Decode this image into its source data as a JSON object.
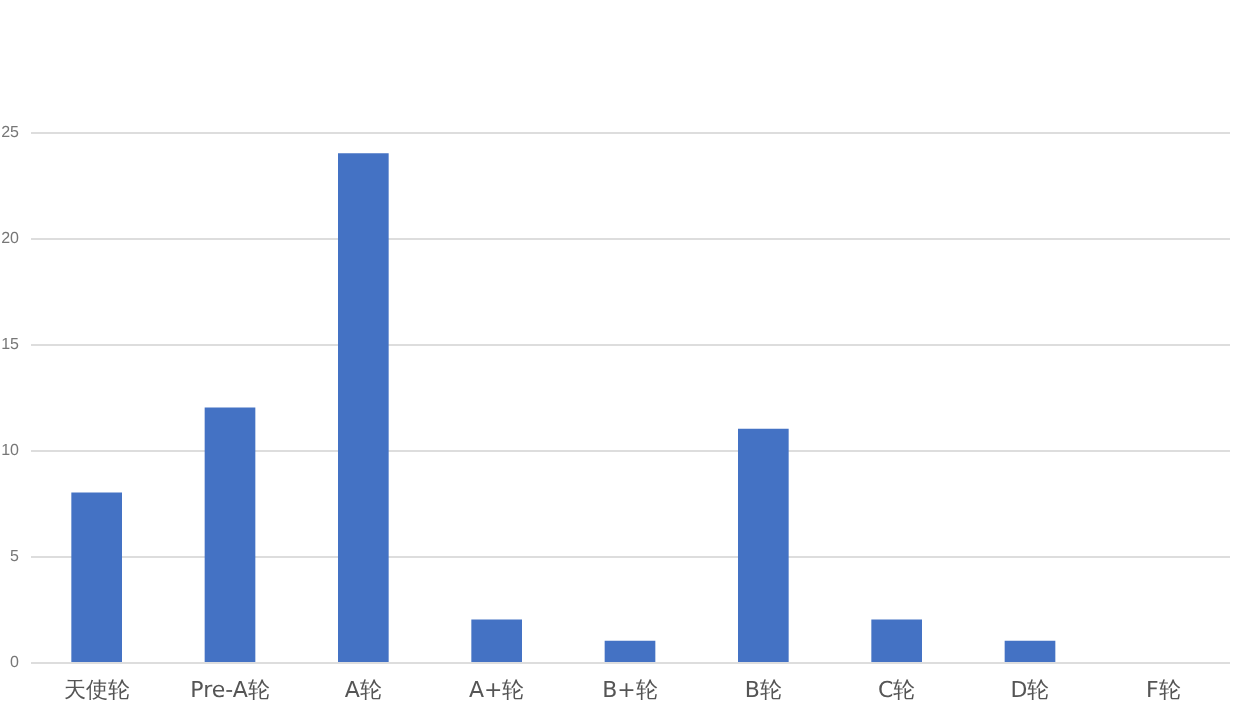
{
  "chart_data": {
    "type": "bar",
    "categories": [
      "天使轮",
      "Pre-A轮",
      "A轮",
      "A+轮",
      "B+轮",
      "B轮",
      "C轮",
      "D轮",
      "F轮"
    ],
    "values": [
      8,
      12,
      24,
      2,
      1,
      11,
      2,
      1,
      null
    ],
    "color": "#4472c4",
    "ylim": [
      0,
      25
    ],
    "yticks": [
      0,
      5,
      10,
      15,
      20,
      25
    ],
    "grid": "y"
  }
}
